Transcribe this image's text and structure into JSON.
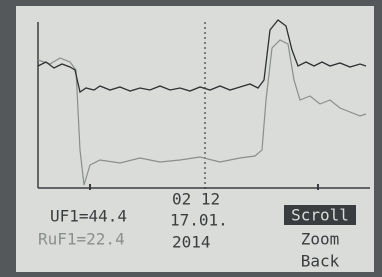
{
  "screen": {
    "readings": [
      "UF1=44.4",
      "RuF1=22.4"
    ],
    "time": "02 12",
    "date": "17.01.",
    "year": "2014",
    "menu": [
      "Scroll",
      "Zoom",
      "Back"
    ]
  }
}
